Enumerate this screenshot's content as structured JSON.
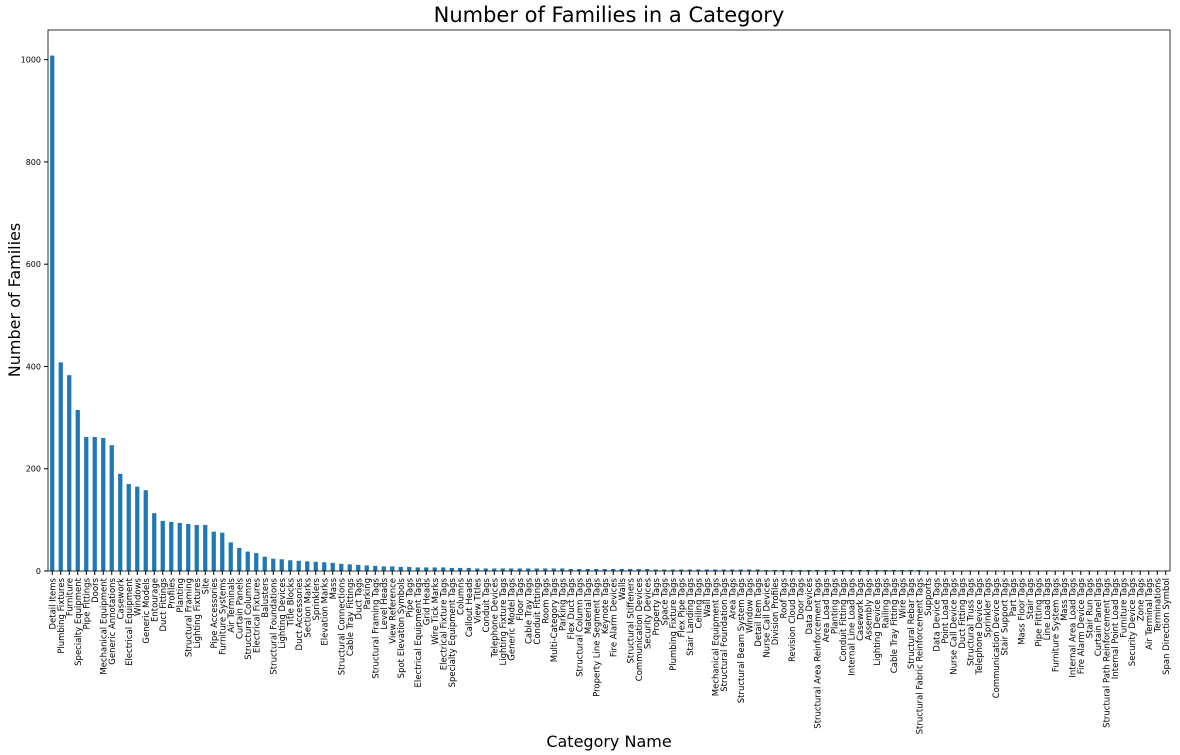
{
  "chart_data": {
    "type": "bar",
    "title": "Number of Families in a Category",
    "x_label": "Category Name",
    "y_label": "Number of Families",
    "color": "#1f77b4",
    "ylim": [
      0,
      1058
    ],
    "yticks": [
      0,
      200,
      400,
      600,
      800,
      1000
    ],
    "categories": [
      "Detail Items",
      "Plumbing Fixtures",
      "Furniture",
      "Specialty Equipment",
      "Pipe Fittings",
      "Doors",
      "Mechanical Equipment",
      "Generic Annotations",
      "Casework",
      "Electrical Equipment",
      "Windows",
      "Generic Models",
      "Entourage",
      "Duct Fittings",
      "Profiles",
      "Planting",
      "Structural Framing",
      "Lighting Fixtures",
      "Site",
      "Pipe Accessories",
      "Furniture Systems",
      "Air Terminals",
      "Curtain Panels",
      "Structural Columns",
      "Electrical Fixtures",
      "Balusters",
      "Structural Foundations",
      "Lighting Devices",
      "Title Blocks",
      "Duct Accessories",
      "Section Marks",
      "Sprinklers",
      "Elevation Marks",
      "Mass",
      "Structural Connections",
      "Cable Tray Fittings",
      "Duct Tags",
      "Parking",
      "Structural Framing Tags",
      "Level Heads",
      "View Reference",
      "Spot Elevation Symbols",
      "Pipe Tags",
      "Electrical Equipment Tags",
      "Grid Heads",
      "Wire Tick Marks",
      "Electrical Fixture Tags",
      "Specialty Equipment Tags",
      "Columns",
      "Callout Heads",
      "View Titles",
      "Conduit Tags",
      "Telephone Devices",
      "Lighting Fixture Tags",
      "Generic Model Tags",
      "Floor Tags",
      "Cable Tray Tags",
      "Conduit Fittings",
      "Room Tags",
      "Multi-Category Tags",
      "Parking Tags",
      "Flex Duct Tags",
      "Structural Column Tags",
      "Material Tags",
      "Property Line Segment Tags",
      "Keynote Tags",
      "Fire Alarm Devices",
      "Walls",
      "Structural Stiffeners",
      "Communication Devices",
      "Security Devices",
      "Property Tags",
      "Space Tags",
      "Plumbing Fixture Tags",
      "Flex Pipe Tags",
      "Stair Landing Tags",
      "Ceiling Tags",
      "Wall Tags",
      "Mechanical Equipment Tags",
      "Structural Foundation Tags",
      "Area Tags",
      "Structural Beam System Tags",
      "Window Tags",
      "Detail Item Tags",
      "Nurse Call Devices",
      "Division Profiles",
      "Roof Tags",
      "Revision Cloud Tags",
      "Door Tags",
      "Data Devices",
      "Structural Area Reinforcement Tags",
      "Area Load Tags",
      "Planting Tags",
      "Conduit Fitting Tags",
      "Internal Line Load Tags",
      "Casework Tags",
      "Assembly Tags",
      "Lighting Device Tags",
      "Railing Tags",
      "Cable Tray Fitting Tags",
      "Wire Tags",
      "Structural Rebar Tags",
      "Structural Fabric Reinforcement Tags",
      "Supports",
      "Data Device Tags",
      "Point Load Tags",
      "Nurse Call Device Tags",
      "Duct Fitting Tags",
      "Structural Truss Tags",
      "Telephone Device Tags",
      "Sprinkler Tags",
      "Communication Device Tags",
      "Stair Support Tags",
      "Part Tags",
      "Mass Floor Tags",
      "Stair Tags",
      "Pipe Fitting Tags",
      "Line Load Tags",
      "Furniture System Tags",
      "Mass Tags",
      "Internal Area Load Tags",
      "Fire Alarm Device Tags",
      "Stair Run Tags",
      "Curtain Panel Tags",
      "Structural Path Reinforcement Tags",
      "Internal Point Load Tags",
      "Furniture Tags",
      "Security Device Tags",
      "Zone Tags",
      "Air Terminal Tags",
      "Terminations",
      "Span Direction Symbol"
    ],
    "values": [
      1008,
      408,
      383,
      315,
      262,
      262,
      260,
      246,
      190,
      170,
      165,
      158,
      113,
      98,
      96,
      94,
      92,
      90,
      90,
      77,
      75,
      56,
      45,
      38,
      35,
      28,
      24,
      23,
      21,
      20,
      19,
      18,
      17,
      16,
      14,
      13,
      12,
      11,
      10,
      9,
      9,
      8,
      8,
      7,
      7,
      7,
      7,
      6,
      6,
      6,
      5,
      5,
      5,
      5,
      5,
      5,
      5,
      5,
      5,
      5,
      5,
      4,
      4,
      4,
      4,
      4,
      4,
      4,
      4,
      4,
      4,
      3,
      3,
      3,
      3,
      3,
      3,
      3,
      3,
      3,
      3,
      3,
      3,
      3,
      2,
      2,
      2,
      2,
      2,
      2,
      2,
      2,
      2,
      2,
      2,
      2,
      2,
      2,
      2,
      2,
      2,
      2,
      2,
      1,
      1,
      1,
      1,
      1,
      1,
      1,
      1,
      1,
      1,
      1,
      1,
      1,
      1,
      1,
      1,
      1,
      1,
      1,
      1,
      1,
      1,
      1,
      1,
      1,
      1,
      1,
      1,
      1
    ]
  }
}
